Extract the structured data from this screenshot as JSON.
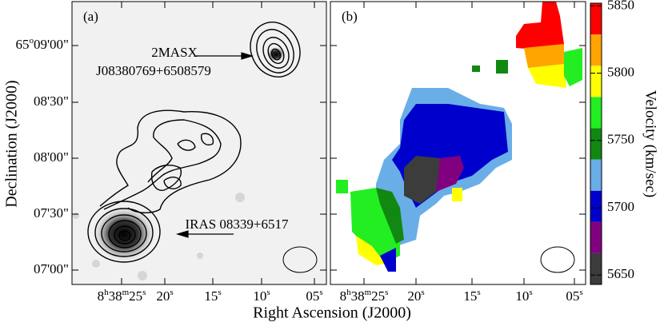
{
  "panels": [
    {
      "label": "(a)"
    },
    {
      "label": "(b)"
    }
  ],
  "x_axis": {
    "label": "Right Ascension (J2000)",
    "ticks": [
      [
        "8",
        "h",
        "38",
        "m",
        "25",
        "s"
      ],
      [
        "20",
        "s"
      ],
      [
        "15",
        "s"
      ],
      [
        "10",
        "s"
      ],
      [
        "05",
        "s"
      ]
    ]
  },
  "y_axis": {
    "label": "Declination (J2000)",
    "ticks": [
      [
        "65",
        "o",
        "09'00\""
      ],
      [
        "08'30\""
      ],
      [
        "08'00\""
      ],
      [
        "07'30\""
      ],
      [
        "07'00\""
      ]
    ]
  },
  "annotations": {
    "galaxy_name": "2MASX",
    "galaxy_id": "J08380769+6508579",
    "iras": "IRAS 08339+6517"
  },
  "colorbar": {
    "label": "Velocity (km/sec)",
    "range": [
      5643,
      5852
    ],
    "ticks": [
      5650,
      5700,
      5750,
      5800,
      5850
    ],
    "colors": [
      "#3c3c3c",
      "#800080",
      "#0000cc",
      "#6aaee8",
      "#118811",
      "#22ee22",
      "#ffff00",
      "#ffa500",
      "#ff0000"
    ]
  }
}
